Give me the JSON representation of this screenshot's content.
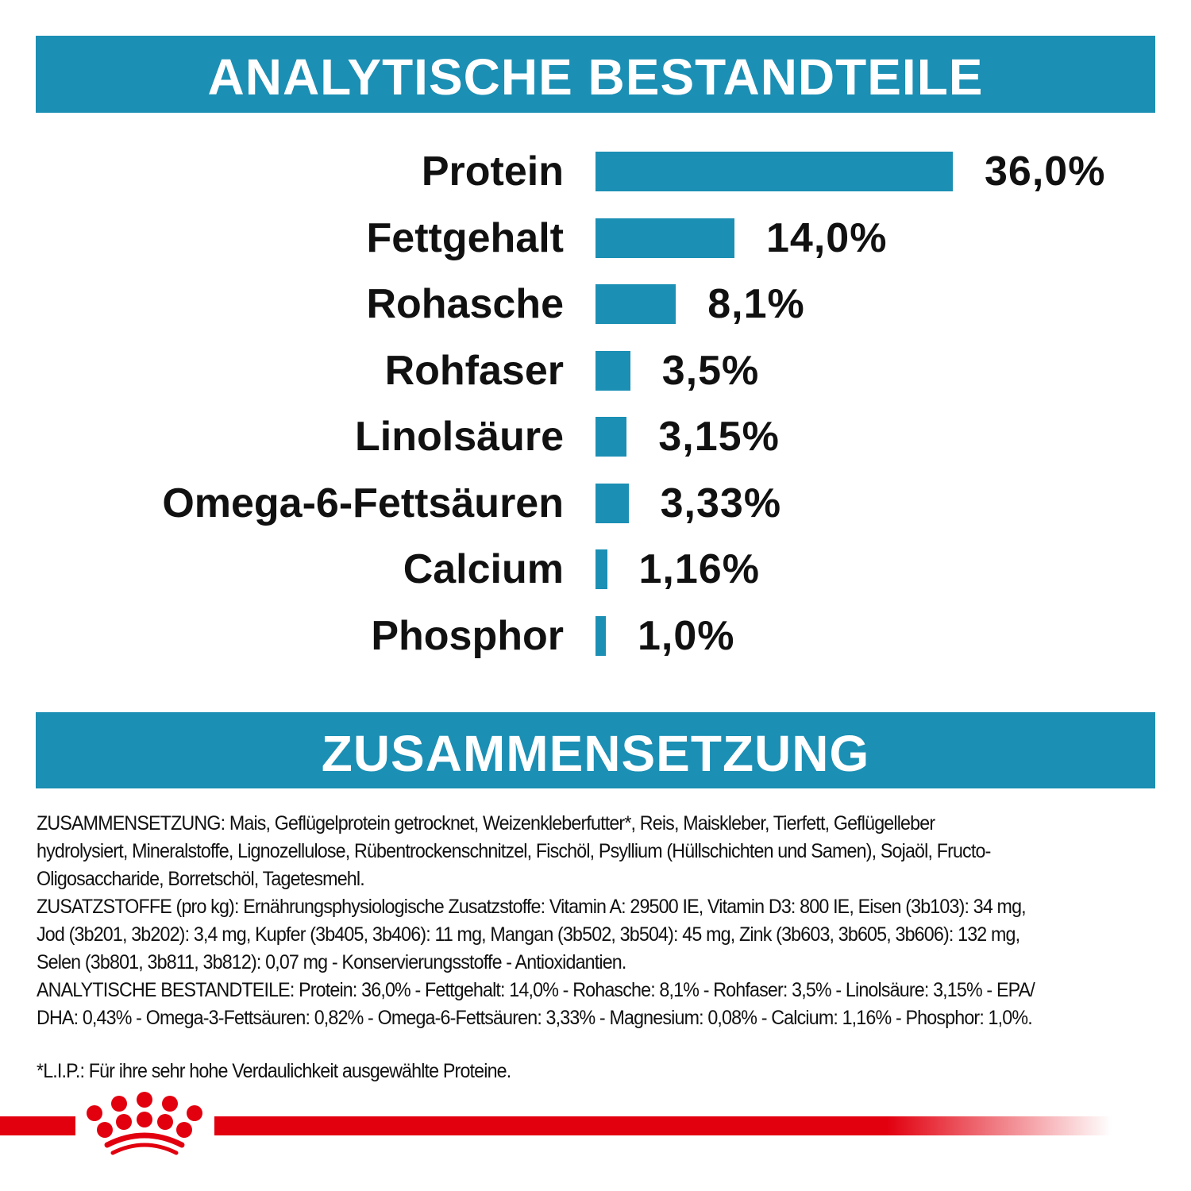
{
  "header1": "ANALYTISCHE BESTANDTEILE",
  "header2": "ZUSAMMENSETZUNG",
  "colors": {
    "accent": "#1b8fb4",
    "brand_red": "#e2000f"
  },
  "chart_data": {
    "type": "bar",
    "orientation": "horizontal",
    "categories": [
      "Protein",
      "Fettgehalt",
      "Rohasche",
      "Rohfaser",
      "Linolsäure",
      "Omega-6-Fettsäuren",
      "Calcium",
      "Phosphor"
    ],
    "values": [
      36.0,
      14.0,
      8.1,
      3.5,
      3.15,
      3.33,
      1.16,
      1.0
    ],
    "value_labels": [
      "36,0%",
      "14,0%",
      "8,1%",
      "3,5%",
      "3,15%",
      "3,33%",
      "1,16%",
      "1,0%"
    ],
    "unit": "%",
    "grid": false
  },
  "composition_lines": [
    "ZUSAMMENSETZUNG: Mais, Geflügelprotein getrocknet, Weizenkleberfutter*, Reis, Maiskleber, Tierfett, Geflügelleber",
    "hydrolysiert, Mineralstoffe, Lignozellulose, Rübentrockenschnitzel, Fischöl, Psyllium (Hüllschichten und Samen), Sojaöl, Fructo-",
    "Oligosaccharide, Borretschöl, Tagetesmehl.",
    "ZUSATZSTOFFE (pro kg): Ernährungsphysiologische Zusatzstoffe: Vitamin A: 29500 IE, Vitamin D3: 800 IE, Eisen (3b103): 34 mg,",
    "Jod (3b201, 3b202): 3,4 mg, Kupfer (3b405, 3b406): 11 mg, Mangan (3b502, 3b504): 45 mg, Zink (3b603, 3b605, 3b606): 132 mg,",
    "Selen (3b801, 3b811, 3b812): 0,07 mg - Konservierungsstoffe - Antioxidantien.",
    "ANALYTISCHE BESTANDTEILE: Protein: 36,0% - Fettgehalt: 14,0% - Rohasche: 8,1% - Rohfaser: 3,5% - Linolsäure: 3,15% - EPA/",
    "DHA: 0,43% - Omega-3-Fettsäuren: 0,82% - Omega-6-Fettsäuren: 3,33% - Magnesium: 0,08% - Calcium: 1,16% - Phosphor: 1,0%."
  ],
  "footnote": "*L.I.P.: Für ihre sehr hohe Verdaulichkeit ausgewählte Proteine.",
  "logo": {
    "icon": "crown-icon"
  }
}
